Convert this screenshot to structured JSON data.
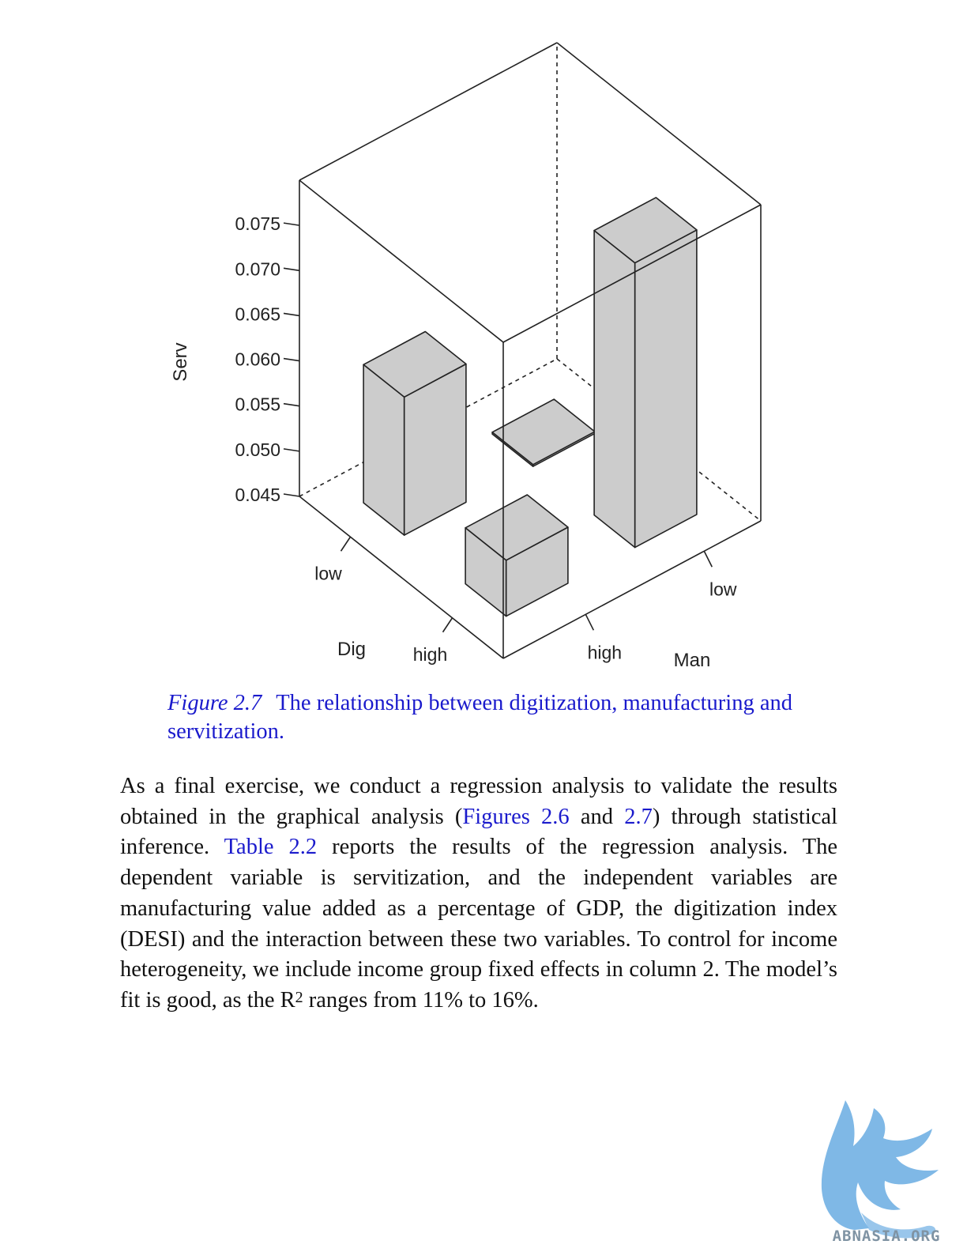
{
  "chart_data": {
    "type": "bar3d",
    "zlabel": "Serv",
    "xlabel": "Dig",
    "ylabel": "Man",
    "x_categories": [
      "low",
      "high"
    ],
    "y_categories": [
      "low",
      "high"
    ],
    "z_ticks": [
      "0.045",
      "0.050",
      "0.055",
      "0.060",
      "0.065",
      "0.070",
      "0.075"
    ],
    "zlim": [
      0.045,
      0.08
    ],
    "bars": [
      {
        "dig": "low",
        "man": "high",
        "value": 0.0603
      },
      {
        "dig": "low",
        "man": "low",
        "value": 0.0452
      },
      {
        "dig": "high",
        "man": "high",
        "value": 0.0512
      },
      {
        "dig": "high",
        "man": "low",
        "value": 0.0765
      }
    ],
    "bar_color": "#cccccc"
  },
  "caption": {
    "label": "Figure 2.7",
    "text": "The relationship between digitization, manufacturing and servitization."
  },
  "paragraph": {
    "p1": "As a final exercise, we conduct a regression analysis to validate the results obtained in the graphical analysis (",
    "link_fig26": "Figures 2.6",
    "p2": " and ",
    "link_fig27": "2.7",
    "p3": ") through statistical inference. ",
    "link_table": "Table 2.2",
    "p4": " reports the results of the regression analysis. The dependent variable is servitization, and the independent variables are manufacturing value added as a percentage of GDP, the digitization index (DESI) and the interaction between these two variables. To control for income heterogeneity, we include income group fixed effects in column 2. The model’s fit is good, as the R",
    "sup": "2",
    "p5": " ranges from 11% to 16%."
  },
  "watermark": {
    "text": "ABNASIA.ORG",
    "color": "#7fb8e6"
  }
}
